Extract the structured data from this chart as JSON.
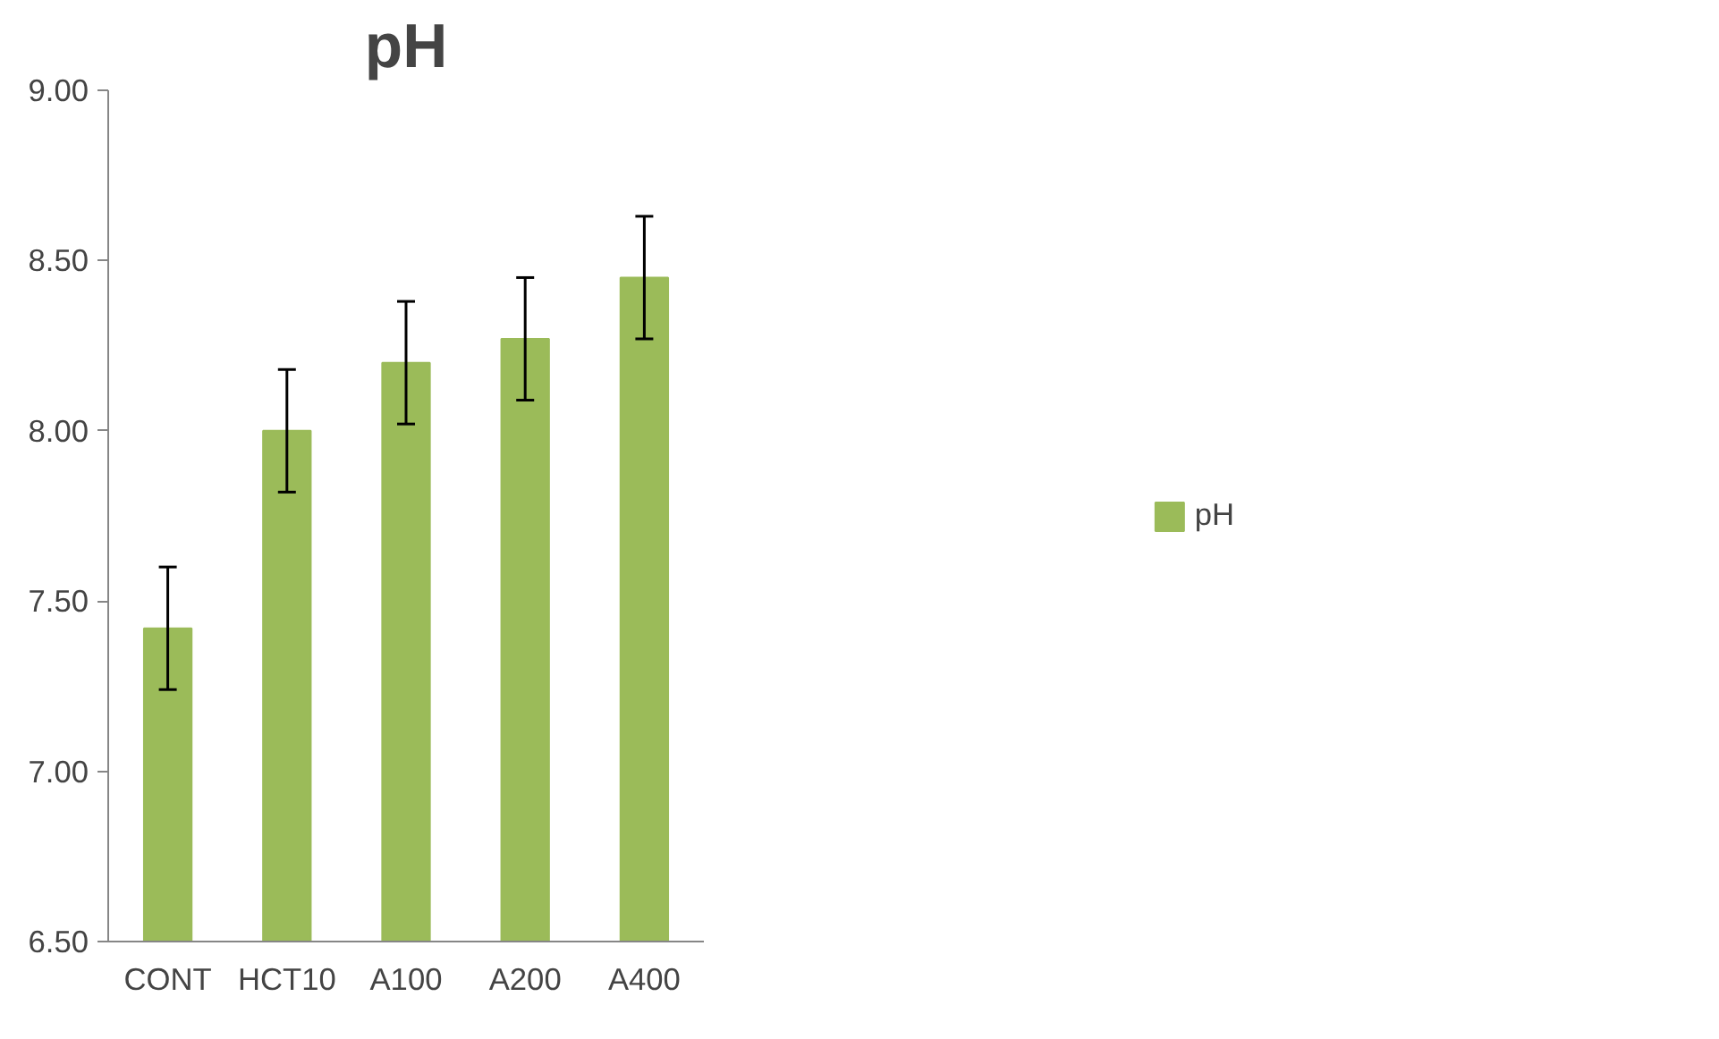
{
  "chart_data": {
    "type": "bar",
    "title": "pH",
    "categories": [
      "CONT",
      "HCT10",
      "A100",
      "A200",
      "A400"
    ],
    "series": [
      {
        "name": "pH",
        "color": "#9bbb59",
        "values": [
          7.42,
          8.0,
          8.2,
          8.27,
          8.45
        ],
        "errors": [
          0.18,
          0.18,
          0.18,
          0.18,
          0.18
        ]
      }
    ],
    "ylim": [
      6.5,
      9.0
    ],
    "yticks": [
      {
        "value": 6.5,
        "label": "6.50"
      },
      {
        "value": 7.0,
        "label": "7.00"
      },
      {
        "value": 7.5,
        "label": "7.50"
      },
      {
        "value": 8.0,
        "label": "8.00"
      },
      {
        "value": 8.5,
        "label": "8.50"
      },
      {
        "value": 9.0,
        "label": "9.00"
      }
    ],
    "grid": false,
    "legend": "right"
  }
}
